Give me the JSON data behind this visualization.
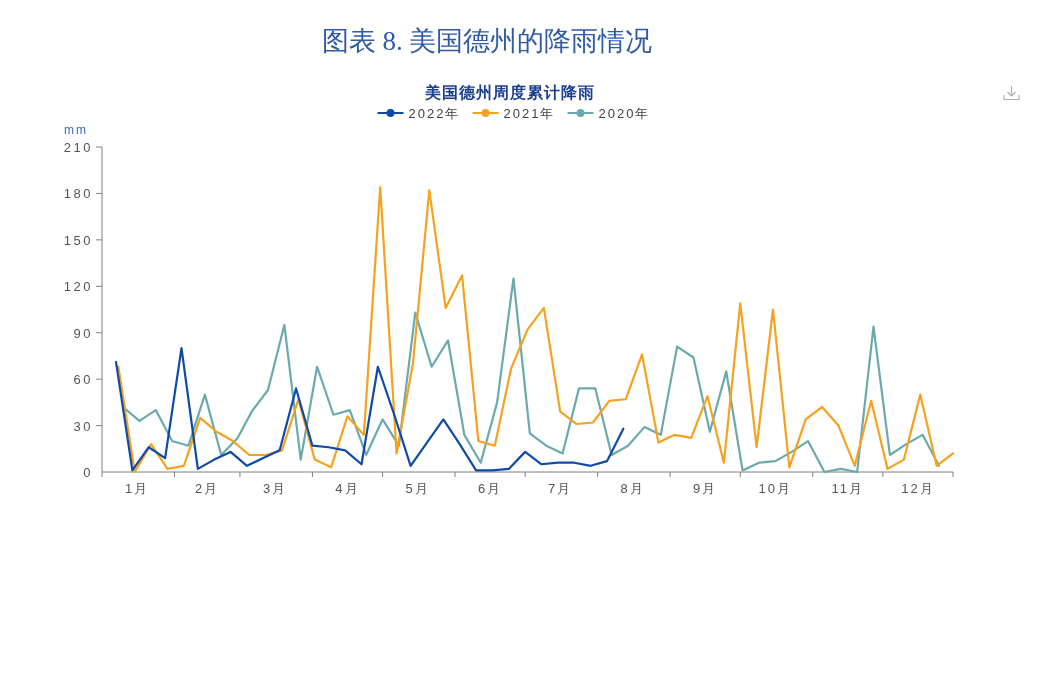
{
  "chart_data": {
    "type": "line",
    "title": "图表 8. 美国德州的降雨情况",
    "subtitle": "美国德州周度累计降雨",
    "ylabel": "mm",
    "xlim": [
      "--01-01",
      "--12-31"
    ],
    "xticks": [
      {
        "value": "--01-01",
        "label": null
      },
      {
        "value": "--01-16",
        "label": "1月"
      },
      {
        "value": "--02-01",
        "label": null
      },
      {
        "value": "--02-15",
        "label": "2月"
      },
      {
        "value": "--03-01",
        "label": null
      },
      {
        "value": "--03-16",
        "label": "3月"
      },
      {
        "value": "--04-01",
        "label": null
      },
      {
        "value": "--04-16",
        "label": "4月"
      },
      {
        "value": "--05-01",
        "label": null
      },
      {
        "value": "--05-16",
        "label": "5月"
      },
      {
        "value": "--06-01",
        "label": null
      },
      {
        "value": "--06-16",
        "label": "6月"
      },
      {
        "value": "--07-01",
        "label": null
      },
      {
        "value": "--07-16",
        "label": "7月"
      },
      {
        "value": "--08-01",
        "label": null
      },
      {
        "value": "--08-16",
        "label": "8月"
      },
      {
        "value": "--09-01",
        "label": null
      },
      {
        "value": "--09-16",
        "label": "9月"
      },
      {
        "value": "--10-01",
        "label": null
      },
      {
        "value": "--10-16",
        "label": "10月"
      },
      {
        "value": "--11-01",
        "label": null
      },
      {
        "value": "--11-16",
        "label": "11月"
      },
      {
        "value": "--12-01",
        "label": null
      },
      {
        "value": "--12-16",
        "label": "12月"
      },
      {
        "value": "--12-31",
        "label": null
      }
    ],
    "ylim": [
      0,
      210
    ],
    "yticks": [
      0,
      30,
      60,
      90,
      120,
      150,
      180,
      210
    ],
    "legend": "top",
    "marker": "none",
    "series": [
      {
        "name": "2022年",
        "color": "#0f4aa6",
        "x": [
          "--01-07",
          "--01-14",
          "--01-21",
          "--01-28",
          "--02-04",
          "--02-11",
          "--02-18",
          "--02-25",
          "--03-04",
          "--03-11",
          "--03-18",
          "--03-25",
          "--04-01",
          "--04-08",
          "--04-15",
          "--04-22",
          "--04-29",
          "--05-06",
          "--05-13",
          "--05-20",
          "--05-27",
          "--06-03",
          "--06-10",
          "--06-17",
          "--06-24",
          "--07-01",
          "--07-08",
          "--07-15",
          "--07-22",
          "--07-29",
          "--08-05",
          "--08-12"
        ],
        "values": [
          71,
          1,
          16,
          9,
          80,
          2,
          8,
          13,
          4,
          9,
          14,
          54,
          17,
          16,
          14,
          5,
          68,
          37,
          4,
          19,
          34,
          18,
          1,
          1,
          2,
          13,
          5,
          6,
          6,
          4,
          7,
          28
        ]
      },
      {
        "name": "2021年",
        "color": "#f6a21e",
        "x": [
          "--01-08",
          "--01-15",
          "--01-22",
          "--01-29",
          "--02-05",
          "--02-12",
          "--02-19",
          "--02-26",
          "--03-05",
          "--03-12",
          "--03-19",
          "--03-26",
          "--04-02",
          "--04-09",
          "--04-16",
          "--04-23",
          "--04-30",
          "--05-07",
          "--05-14",
          "--05-21",
          "--05-28",
          "--06-04",
          "--06-11",
          "--06-18",
          "--06-25",
          "--07-02",
          "--07-09",
          "--07-16",
          "--07-23",
          "--07-30",
          "--08-06",
          "--08-13",
          "--08-20",
          "--08-27",
          "--09-03",
          "--09-10",
          "--09-17",
          "--09-24",
          "--10-01",
          "--10-08",
          "--10-15",
          "--10-22",
          "--10-29",
          "--11-05",
          "--11-12",
          "--11-19",
          "--11-26",
          "--12-03",
          "--12-10",
          "--12-17",
          "--12-24",
          "--12-31"
        ],
        "values": [
          68,
          0,
          18,
          2,
          4,
          35,
          26,
          20,
          11,
          11,
          14,
          47,
          8,
          3,
          36,
          24,
          184,
          12,
          70,
          182,
          106,
          127,
          20,
          17,
          67,
          92,
          106,
          39,
          31,
          32,
          46,
          47,
          76,
          19,
          24,
          22,
          49,
          6,
          109,
          16,
          105,
          3,
          34,
          42,
          30,
          4,
          46,
          2,
          8,
          50,
          4,
          12
        ]
      },
      {
        "name": "2020年",
        "color": "#6aaaae",
        "x": [
          "--01-10",
          "--01-17",
          "--01-24",
          "--01-31",
          "--02-07",
          "--02-14",
          "--02-21",
          "--02-28",
          "--03-06",
          "--03-13",
          "--03-20",
          "--03-27",
          "--04-03",
          "--04-10",
          "--04-17",
          "--04-24",
          "--05-01",
          "--05-08",
          "--05-15",
          "--05-22",
          "--05-29",
          "--06-05",
          "--06-12",
          "--06-19",
          "--06-26",
          "--07-03",
          "--07-10",
          "--07-17",
          "--07-24",
          "--07-31",
          "--08-07",
          "--08-14",
          "--08-21",
          "--08-28",
          "--09-04",
          "--09-11",
          "--09-18",
          "--09-25",
          "--10-02",
          "--10-09",
          "--10-16",
          "--10-23",
          "--10-30",
          "--11-06",
          "--11-13",
          "--11-20",
          "--11-27",
          "--12-04",
          "--12-11",
          "--12-18",
          "--12-25"
        ],
        "values": [
          42,
          33,
          40,
          20,
          17,
          50,
          11,
          22,
          39,
          53,
          95,
          8,
          68,
          37,
          40,
          11,
          34,
          17,
          103,
          68,
          85,
          24,
          6,
          45,
          125,
          25,
          17,
          12,
          54,
          54,
          11,
          17,
          29,
          24,
          81,
          74,
          26,
          65,
          1,
          6,
          7,
          13,
          20,
          0,
          2,
          0,
          94,
          11,
          18,
          24,
          4
        ]
      }
    ]
  }
}
